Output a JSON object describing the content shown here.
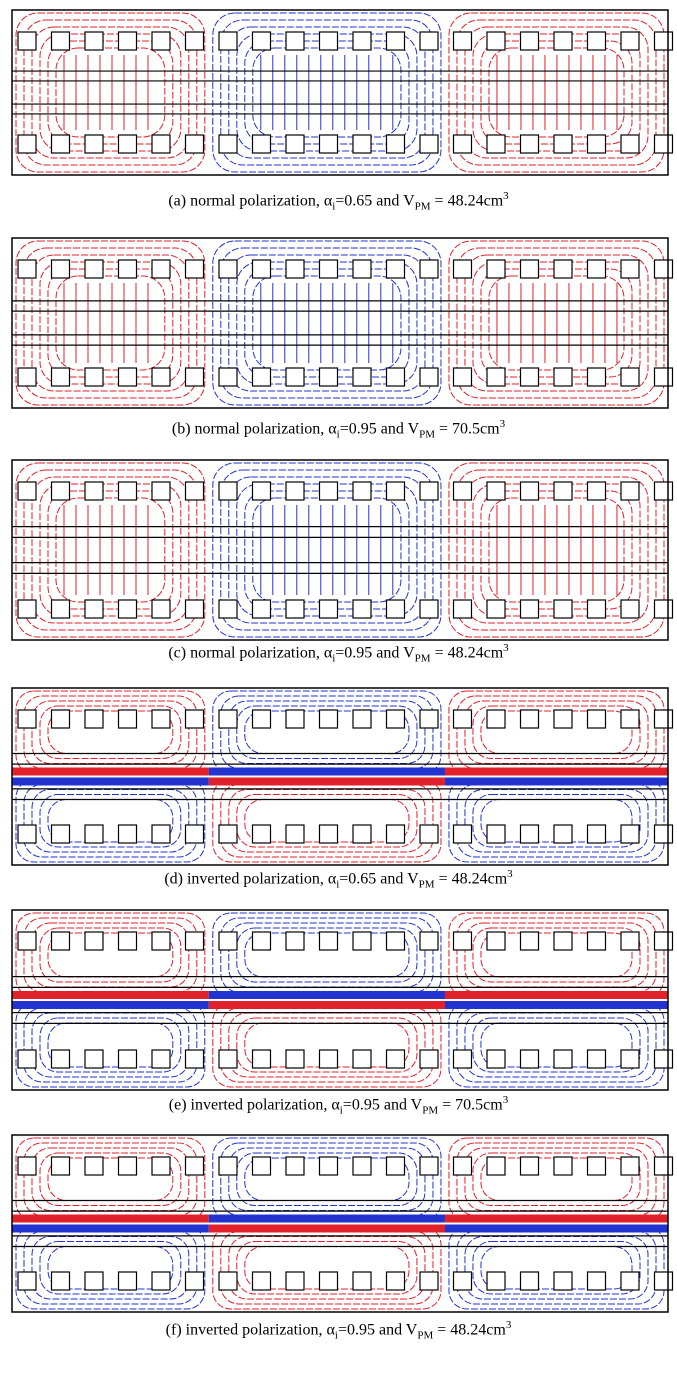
{
  "figure": {
    "captions": [
      {
        "label": "(a) normal polarization, ",
        "alpha": "α",
        "alpha_sub": "i",
        "mid": "=0.65 and V",
        "v_sub": "PM",
        "rest": " = 48.24cm",
        "sup": "3"
      },
      {
        "label": "(b) normal polarization, ",
        "alpha": "α",
        "alpha_sub": "i",
        "mid": "=0.95 and V",
        "v_sub": "PM",
        "rest": " = 70.5cm",
        "sup": "3"
      },
      {
        "label": "(c) normal polarization, ",
        "alpha": "α",
        "alpha_sub": "i",
        "mid": "=0.95 and V",
        "v_sub": "PM",
        "rest": " = 48.24cm",
        "sup": "3"
      },
      {
        "label": "(d) inverted polarization, ",
        "alpha": "α",
        "alpha_sub": "i",
        "mid": "=0.65 and V",
        "v_sub": "PM",
        "rest": " = 48.24cm",
        "sup": "3"
      },
      {
        "label": "(e) inverted polarization, ",
        "alpha": "α",
        "alpha_sub": "i",
        "mid": "=0.95 and V",
        "v_sub": "PM",
        "rest": " = 70.5cm",
        "sup": "3"
      },
      {
        "label": "(f) inverted polarization, ",
        "alpha": "α",
        "alpha_sub": "i",
        "mid": "=0.95 and V",
        "v_sub": "PM",
        "rest": " = 48.24cm",
        "sup": "3"
      }
    ]
  }
}
